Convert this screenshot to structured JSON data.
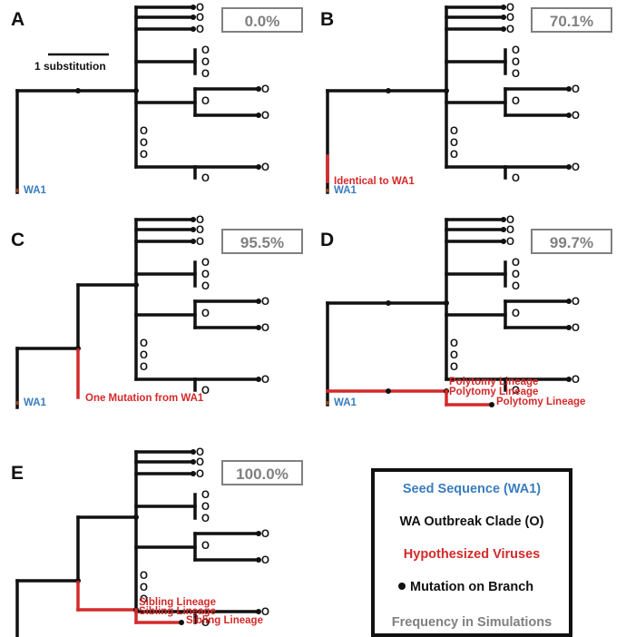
{
  "scale_bar_label": "1 substitution",
  "tip_marker": "O",
  "colors": {
    "seed": "#3a7dbf",
    "outbreak": "#111111",
    "hypothesized": "#d42a2a",
    "frequency": "#808080"
  },
  "panels": [
    {
      "label": "A",
      "frequency": "0.0%",
      "seed_label": "WA1",
      "hypothesis": "none",
      "hyp_labels": []
    },
    {
      "label": "B",
      "frequency": "70.1%",
      "seed_label": "WA1",
      "hypothesis": "identical",
      "hyp_labels": [
        "Identical to WA1"
      ]
    },
    {
      "label": "C",
      "frequency": "95.5%",
      "seed_label": "WA1",
      "hypothesis": "one-mutation",
      "hyp_labels": [
        "One Mutation from WA1"
      ]
    },
    {
      "label": "D",
      "frequency": "99.7%",
      "seed_label": "WA1",
      "hypothesis": "polytomy",
      "hyp_labels": [
        "Polytomy Lineage",
        "Polytomy Lineage",
        "Polytomy Lineage"
      ]
    },
    {
      "label": "E",
      "frequency": "100.0%",
      "seed_label": "",
      "hypothesis": "sibling",
      "hyp_labels": [
        "Sibling Lineage",
        "Sibling Lineage",
        "Sibling Lineage"
      ]
    }
  ],
  "legend": {
    "seed": "Seed Sequence (WA1)",
    "outbreak": "WA Outbreak Clade (O)",
    "hypothesized": "Hypothesized Viruses",
    "mutation": "Mutation on Branch",
    "frequency": "Frequency in Simulations"
  }
}
